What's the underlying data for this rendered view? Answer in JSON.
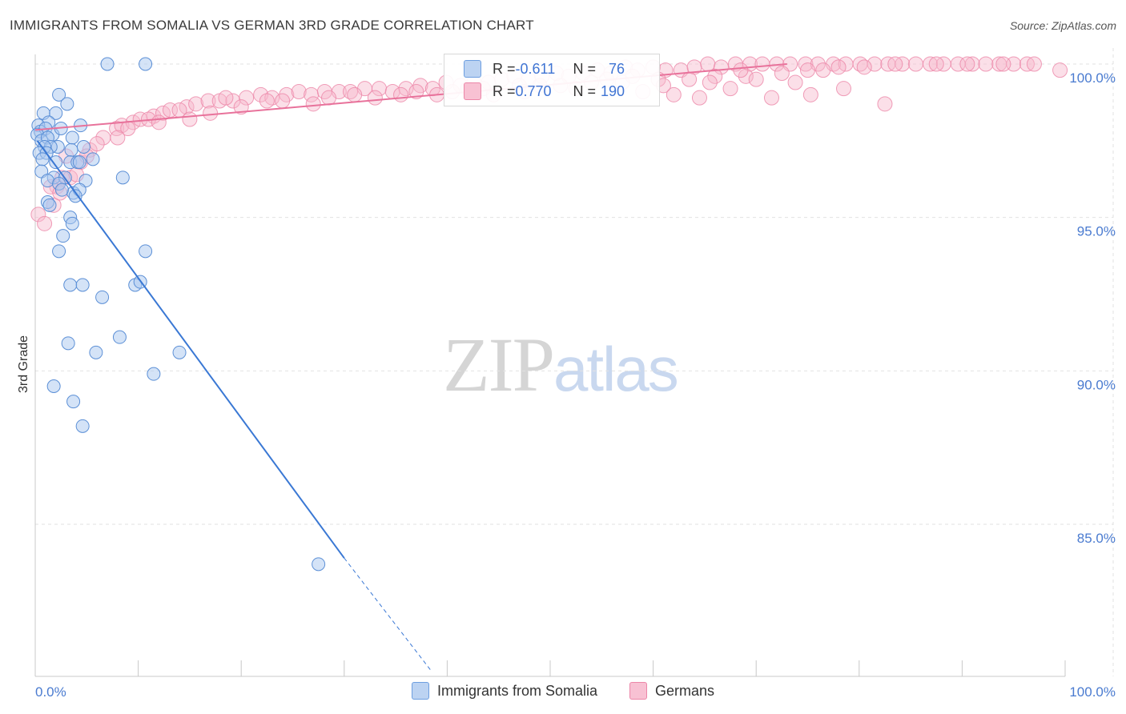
{
  "header": {
    "title": "IMMIGRANTS FROM SOMALIA VS GERMAN 3RD GRADE CORRELATION CHART",
    "source": "Source: ZipAtlas.com"
  },
  "watermark": {
    "zip": "ZIP",
    "atlas": "atlas"
  },
  "colors": {
    "blue_fill": "#aac8ef",
    "blue_stroke": "#5b8fd6",
    "blue_line": "#3a78d4",
    "pink_fill": "#f6b7cb",
    "pink_stroke": "#ec86a8",
    "pink_line": "#e8729b",
    "tick_text": "#4a7bd0",
    "grid": "#e2e2e2"
  },
  "legend_top": {
    "rows": [
      {
        "r_label": "R = ",
        "r_value": "-0.611",
        "n_label": "N = ",
        "n_value": "76",
        "color": "blue"
      },
      {
        "r_label": "R = ",
        "r_value": "0.770",
        "n_label": "N = ",
        "n_value": "190",
        "color": "pink"
      }
    ]
  },
  "legend_bottom": {
    "items": [
      {
        "label": "Immigrants from Somalia",
        "color": "blue"
      },
      {
        "label": "Germans",
        "color": "pink"
      }
    ]
  },
  "chart_data": {
    "type": "scatter",
    "title": "IMMIGRANTS FROM SOMALIA VS GERMAN 3RD GRADE CORRELATION CHART",
    "xlabel": "",
    "ylabel": "3rd Grade",
    "xlim": [
      0,
      100
    ],
    "ylim": [
      80.2,
      100.7
    ],
    "x_tick_labels": [
      {
        "value": 0,
        "label": "0.0%"
      },
      {
        "value": 100,
        "label": "100.0%"
      }
    ],
    "y_tick_labels": [
      {
        "value": 100,
        "label": "100.0%"
      },
      {
        "value": 95,
        "label": "95.0%"
      },
      {
        "value": 90,
        "label": "90.0%"
      },
      {
        "value": 85,
        "label": "85.0%"
      }
    ],
    "grid": true,
    "series": [
      {
        "name": "Immigrants from Somalia",
        "color": "blue",
        "R": -0.611,
        "N": 76,
        "trend": {
          "x0": 0.2,
          "y0": 97.5,
          "x1": 30.0,
          "y1": 83.9,
          "dashed_to_x": 38.5,
          "dashed_to_y": 80.2
        },
        "points": [
          [
            7.0,
            100.0
          ],
          [
            10.7,
            100.0
          ],
          [
            2.3,
            99.0
          ],
          [
            3.1,
            98.7
          ],
          [
            0.8,
            98.4
          ],
          [
            2.0,
            98.4
          ],
          [
            1.3,
            98.1
          ],
          [
            0.3,
            98.0
          ],
          [
            0.5,
            97.8
          ],
          [
            1.0,
            97.9
          ],
          [
            1.7,
            97.7
          ],
          [
            2.5,
            97.9
          ],
          [
            4.4,
            98.0
          ],
          [
            0.2,
            97.7
          ],
          [
            0.6,
            97.5
          ],
          [
            1.2,
            97.6
          ],
          [
            2.2,
            97.3
          ],
          [
            3.6,
            97.6
          ],
          [
            1.5,
            97.3
          ],
          [
            0.9,
            97.3
          ],
          [
            0.4,
            97.1
          ],
          [
            1.1,
            97.1
          ],
          [
            3.5,
            97.2
          ],
          [
            4.7,
            97.3
          ],
          [
            0.7,
            96.9
          ],
          [
            2.0,
            96.8
          ],
          [
            3.4,
            96.8
          ],
          [
            4.1,
            96.8
          ],
          [
            5.6,
            96.9
          ],
          [
            4.3,
            96.8
          ],
          [
            0.6,
            96.5
          ],
          [
            1.8,
            96.3
          ],
          [
            2.9,
            96.3
          ],
          [
            4.9,
            96.2
          ],
          [
            8.5,
            96.3
          ],
          [
            1.2,
            96.2
          ],
          [
            2.3,
            96.1
          ],
          [
            3.7,
            95.8
          ],
          [
            4.3,
            95.9
          ],
          [
            2.6,
            95.9
          ],
          [
            3.9,
            95.7
          ],
          [
            1.2,
            95.5
          ],
          [
            1.4,
            95.4
          ],
          [
            3.4,
            95.0
          ],
          [
            3.6,
            94.8
          ],
          [
            2.7,
            94.4
          ],
          [
            2.3,
            93.9
          ],
          [
            10.7,
            93.9
          ],
          [
            3.4,
            92.8
          ],
          [
            4.6,
            92.8
          ],
          [
            9.7,
            92.8
          ],
          [
            10.2,
            92.9
          ],
          [
            6.5,
            92.4
          ],
          [
            8.2,
            91.1
          ],
          [
            3.2,
            90.9
          ],
          [
            5.9,
            90.6
          ],
          [
            14.0,
            90.6
          ],
          [
            1.8,
            89.5
          ],
          [
            11.5,
            89.9
          ],
          [
            3.7,
            89.0
          ],
          [
            4.6,
            88.2
          ],
          [
            27.5,
            83.7
          ]
        ]
      },
      {
        "name": "Germans",
        "color": "pink",
        "R": 0.77,
        "N": 190,
        "trend": {
          "x0": 0.0,
          "y0": 97.85,
          "x1": 73.0,
          "y1": 100.0
        },
        "points": [
          [
            0.3,
            95.1
          ],
          [
            0.9,
            94.8
          ],
          [
            1.8,
            95.4
          ],
          [
            2.6,
            96.3
          ],
          [
            3.4,
            96.3
          ],
          [
            4.4,
            96.8
          ],
          [
            2.1,
            96.0
          ],
          [
            5.3,
            97.2
          ],
          [
            6.6,
            97.6
          ],
          [
            7.9,
            97.9
          ],
          [
            8.4,
            98.0
          ],
          [
            9.5,
            98.1
          ],
          [
            10.2,
            98.2
          ],
          [
            11.5,
            98.3
          ],
          [
            12.4,
            98.4
          ],
          [
            13.1,
            98.5
          ],
          [
            14.7,
            98.6
          ],
          [
            15.6,
            98.7
          ],
          [
            16.8,
            98.8
          ],
          [
            17.9,
            98.8
          ],
          [
            19.2,
            98.8
          ],
          [
            20.5,
            98.9
          ],
          [
            21.9,
            99.0
          ],
          [
            23.0,
            98.9
          ],
          [
            24.4,
            99.0
          ],
          [
            25.6,
            99.1
          ],
          [
            26.8,
            99.0
          ],
          [
            28.1,
            99.1
          ],
          [
            29.5,
            99.1
          ],
          [
            30.6,
            99.1
          ],
          [
            32.0,
            99.2
          ],
          [
            33.4,
            99.2
          ],
          [
            34.7,
            99.1
          ],
          [
            36.0,
            99.2
          ],
          [
            37.4,
            99.3
          ],
          [
            38.6,
            99.2
          ],
          [
            39.9,
            99.4
          ],
          [
            41.3,
            99.3
          ],
          [
            42.6,
            99.4
          ],
          [
            44.0,
            99.4
          ],
          [
            45.3,
            99.5
          ],
          [
            46.5,
            99.6
          ],
          [
            47.9,
            99.5
          ],
          [
            49.2,
            99.6
          ],
          [
            50.6,
            99.7
          ],
          [
            51.8,
            99.6
          ],
          [
            53.2,
            99.7
          ],
          [
            54.6,
            99.8
          ],
          [
            55.9,
            99.7
          ],
          [
            57.3,
            99.9
          ],
          [
            58.5,
            99.8
          ],
          [
            60.0,
            99.9
          ],
          [
            61.2,
            99.8
          ],
          [
            62.7,
            99.8
          ],
          [
            64.0,
            99.9
          ],
          [
            65.3,
            100.0
          ],
          [
            66.6,
            99.9
          ],
          [
            68.0,
            100.0
          ],
          [
            69.4,
            100.0
          ],
          [
            70.6,
            100.0
          ],
          [
            72.0,
            100.0
          ],
          [
            73.3,
            100.0
          ],
          [
            74.8,
            100.0
          ],
          [
            76.0,
            100.0
          ],
          [
            77.5,
            100.0
          ],
          [
            78.7,
            100.0
          ],
          [
            80.1,
            100.0
          ],
          [
            81.5,
            100.0
          ],
          [
            82.8,
            100.0
          ],
          [
            84.2,
            100.0
          ],
          [
            85.5,
            100.0
          ],
          [
            86.9,
            100.0
          ],
          [
            88.2,
            100.0
          ],
          [
            89.6,
            100.0
          ],
          [
            91.0,
            100.0
          ],
          [
            92.3,
            100.0
          ],
          [
            93.6,
            100.0
          ],
          [
            95.0,
            100.0
          ],
          [
            96.3,
            100.0
          ],
          [
            97.0,
            100.0
          ],
          [
            99.5,
            99.8
          ],
          [
            6.0,
            97.4
          ],
          [
            9.0,
            97.9
          ],
          [
            11.0,
            98.2
          ],
          [
            14.0,
            98.5
          ],
          [
            18.5,
            98.9
          ],
          [
            22.5,
            98.8
          ],
          [
            27.0,
            98.7
          ],
          [
            31.0,
            99.0
          ],
          [
            35.5,
            99.0
          ],
          [
            40.5,
            99.1
          ],
          [
            43.5,
            99.2
          ],
          [
            47.0,
            99.3
          ],
          [
            51.0,
            99.3
          ],
          [
            54.0,
            99.4
          ],
          [
            57.0,
            99.4
          ],
          [
            60.5,
            99.5
          ],
          [
            63.5,
            99.5
          ],
          [
            66.0,
            99.6
          ],
          [
            69.0,
            99.6
          ],
          [
            72.5,
            99.7
          ],
          [
            75.0,
            99.8
          ],
          [
            78.0,
            99.9
          ],
          [
            59.0,
            99.1
          ],
          [
            62.0,
            99.0
          ],
          [
            64.5,
            98.9
          ],
          [
            67.5,
            99.2
          ],
          [
            71.5,
            98.9
          ],
          [
            75.3,
            99.0
          ],
          [
            78.5,
            99.2
          ],
          [
            82.5,
            98.7
          ],
          [
            61.0,
            99.3
          ],
          [
            65.5,
            99.4
          ],
          [
            70.0,
            99.5
          ],
          [
            73.8,
            99.4
          ],
          [
            44.5,
            99.0
          ],
          [
            47.5,
            99.1
          ],
          [
            52.5,
            99.2
          ],
          [
            39.0,
            99.0
          ],
          [
            33.0,
            98.9
          ],
          [
            3.0,
            97.0
          ],
          [
            4.0,
            96.4
          ],
          [
            1.5,
            96.0
          ],
          [
            2.4,
            95.8
          ],
          [
            5.0,
            97.0
          ],
          [
            8.0,
            97.6
          ],
          [
            12.0,
            98.1
          ],
          [
            15.0,
            98.2
          ],
          [
            17.0,
            98.4
          ],
          [
            20.0,
            98.6
          ],
          [
            24.0,
            98.8
          ],
          [
            28.5,
            98.9
          ],
          [
            37.0,
            99.1
          ],
          [
            42.0,
            99.2
          ],
          [
            49.0,
            99.3
          ],
          [
            55.5,
            99.5
          ],
          [
            58.0,
            99.6
          ],
          [
            68.5,
            99.8
          ],
          [
            76.5,
            99.8
          ],
          [
            80.5,
            99.9
          ],
          [
            83.5,
            100.0
          ],
          [
            87.5,
            100.0
          ],
          [
            90.5,
            100.0
          ],
          [
            94.0,
            100.0
          ]
        ]
      }
    ]
  }
}
